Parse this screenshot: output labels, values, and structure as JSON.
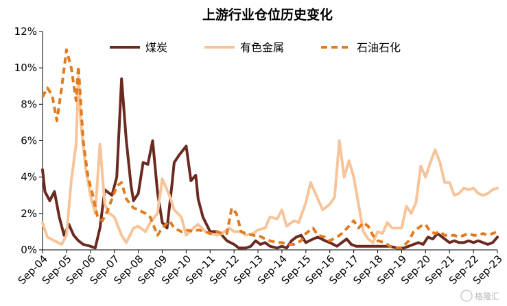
{
  "chart_data": {
    "type": "line",
    "title": "上游行业仓位历史变化",
    "xlabel": "",
    "ylabel": "",
    "ylim": [
      0,
      0.12
    ],
    "y_ticks": [
      "0%",
      "2%",
      "4%",
      "6%",
      "8%",
      "10%",
      "12%"
    ],
    "x_range": [
      2004.5,
      2023.5
    ],
    "x_tick_labels": [
      "Sep-04",
      "Sep-05",
      "Sep-06",
      "Sep-07",
      "Sep-08",
      "Sep-09",
      "Sep-10",
      "Sep-11",
      "Sep-12",
      "Sep-13",
      "Sep-14",
      "Sep-15",
      "Sep-16",
      "Sep-17",
      "Sep-18",
      "Sep-19",
      "Sep-20",
      "Sep-21",
      "Sep-22",
      "Sep-23"
    ],
    "grid": false,
    "legend_position": "top",
    "series": [
      {
        "name": "煤炭",
        "color": "#6b2a20",
        "style": "solid",
        "points": [
          [
            2004.5,
            0.044
          ],
          [
            2004.6,
            0.032
          ],
          [
            2004.8,
            0.027
          ],
          [
            2005.0,
            0.032
          ],
          [
            2005.2,
            0.018
          ],
          [
            2005.4,
            0.008
          ],
          [
            2005.6,
            0.014
          ],
          [
            2005.8,
            0.008
          ],
          [
            2006.0,
            0.005
          ],
          [
            2006.2,
            0.003
          ],
          [
            2006.5,
            0.002
          ],
          [
            2006.7,
            0.001
          ],
          [
            2006.9,
            0.012
          ],
          [
            2007.1,
            0.033
          ],
          [
            2007.4,
            0.03
          ],
          [
            2007.6,
            0.04
          ],
          [
            2007.8,
            0.094
          ],
          [
            2008.0,
            0.06
          ],
          [
            2008.2,
            0.035
          ],
          [
            2008.3,
            0.027
          ],
          [
            2008.5,
            0.031
          ],
          [
            2008.7,
            0.048
          ],
          [
            2008.9,
            0.047
          ],
          [
            2009.1,
            0.06
          ],
          [
            2009.3,
            0.032
          ],
          [
            2009.5,
            0.015
          ],
          [
            2009.7,
            0.012
          ],
          [
            2009.9,
            0.035
          ],
          [
            2010.0,
            0.048
          ],
          [
            2010.2,
            0.052
          ],
          [
            2010.5,
            0.057
          ],
          [
            2010.7,
            0.038
          ],
          [
            2010.9,
            0.041
          ],
          [
            2011.0,
            0.028
          ],
          [
            2011.2,
            0.018
          ],
          [
            2011.5,
            0.01
          ],
          [
            2011.8,
            0.01
          ],
          [
            2012.0,
            0.008
          ],
          [
            2012.2,
            0.005
          ],
          [
            2012.5,
            0.003
          ],
          [
            2012.7,
            0.001
          ],
          [
            2013.0,
            0.001
          ],
          [
            2013.2,
            0.002
          ],
          [
            2013.4,
            0.005
          ],
          [
            2013.6,
            0.003
          ],
          [
            2013.8,
            0.004
          ],
          [
            2014.0,
            0.002
          ],
          [
            2014.3,
            0.001
          ],
          [
            2014.5,
            0.002
          ],
          [
            2014.7,
            0.001
          ],
          [
            2014.9,
            0.005
          ],
          [
            2015.1,
            0.007
          ],
          [
            2015.3,
            0.008
          ],
          [
            2015.5,
            0.004
          ],
          [
            2015.8,
            0.006
          ],
          [
            2016.0,
            0.007
          ],
          [
            2016.3,
            0.005
          ],
          [
            2016.5,
            0.004
          ],
          [
            2016.8,
            0.002
          ],
          [
            2017.0,
            0.004
          ],
          [
            2017.2,
            0.006
          ],
          [
            2017.4,
            0.003
          ],
          [
            2017.6,
            0.002
          ],
          [
            2018.0,
            0.002
          ],
          [
            2018.3,
            0.002
          ],
          [
            2018.6,
            0.002
          ],
          [
            2019.0,
            0.002
          ],
          [
            2019.3,
            0.001
          ],
          [
            2019.6,
            0.001
          ],
          [
            2020.0,
            0.003
          ],
          [
            2020.2,
            0.004
          ],
          [
            2020.4,
            0.003
          ],
          [
            2020.6,
            0.007
          ],
          [
            2020.8,
            0.006
          ],
          [
            2021.0,
            0.009
          ],
          [
            2021.2,
            0.007
          ],
          [
            2021.5,
            0.004
          ],
          [
            2021.7,
            0.005
          ],
          [
            2021.9,
            0.004
          ],
          [
            2022.1,
            0.004
          ],
          [
            2022.3,
            0.005
          ],
          [
            2022.5,
            0.004
          ],
          [
            2022.7,
            0.005
          ],
          [
            2022.9,
            0.004
          ],
          [
            2023.1,
            0.003
          ],
          [
            2023.3,
            0.004
          ],
          [
            2023.5,
            0.007
          ]
        ]
      },
      {
        "name": "有色金属",
        "color": "#f7c49a",
        "style": "solid",
        "points": [
          [
            2004.5,
            0.015
          ],
          [
            2004.7,
            0.007
          ],
          [
            2005.0,
            0.005
          ],
          [
            2005.3,
            0.003
          ],
          [
            2005.5,
            0.008
          ],
          [
            2005.7,
            0.038
          ],
          [
            2005.9,
            0.058
          ],
          [
            2006.0,
            0.095
          ],
          [
            2006.1,
            0.07
          ],
          [
            2006.3,
            0.045
          ],
          [
            2006.5,
            0.03
          ],
          [
            2006.7,
            0.02
          ],
          [
            2006.9,
            0.058
          ],
          [
            2007.1,
            0.025
          ],
          [
            2007.3,
            0.02
          ],
          [
            2007.5,
            0.018
          ],
          [
            2007.8,
            0.008
          ],
          [
            2008.0,
            0.004
          ],
          [
            2008.3,
            0.012
          ],
          [
            2008.5,
            0.013
          ],
          [
            2008.8,
            0.01
          ],
          [
            2009.0,
            0.015
          ],
          [
            2009.3,
            0.02
          ],
          [
            2009.5,
            0.039
          ],
          [
            2009.8,
            0.03
          ],
          [
            2010.0,
            0.022
          ],
          [
            2010.3,
            0.018
          ],
          [
            2010.5,
            0.008
          ],
          [
            2010.8,
            0.012
          ],
          [
            2011.0,
            0.014
          ],
          [
            2011.3,
            0.01
          ],
          [
            2011.5,
            0.009
          ],
          [
            2011.8,
            0.008
          ],
          [
            2012.0,
            0.009
          ],
          [
            2012.3,
            0.012
          ],
          [
            2012.5,
            0.01
          ],
          [
            2012.8,
            0.01
          ],
          [
            2013.0,
            0.008
          ],
          [
            2013.3,
            0.009
          ],
          [
            2013.5,
            0.011
          ],
          [
            2013.8,
            0.012
          ],
          [
            2014.0,
            0.018
          ],
          [
            2014.3,
            0.017
          ],
          [
            2014.5,
            0.022
          ],
          [
            2014.7,
            0.013
          ],
          [
            2015.0,
            0.016
          ],
          [
            2015.2,
            0.015
          ],
          [
            2015.5,
            0.026
          ],
          [
            2015.7,
            0.037
          ],
          [
            2016.0,
            0.028
          ],
          [
            2016.2,
            0.022
          ],
          [
            2016.5,
            0.025
          ],
          [
            2016.7,
            0.029
          ],
          [
            2016.9,
            0.06
          ],
          [
            2017.1,
            0.04
          ],
          [
            2017.3,
            0.049
          ],
          [
            2017.5,
            0.04
          ],
          [
            2017.7,
            0.025
          ],
          [
            2017.9,
            0.01
          ],
          [
            2018.1,
            0.006
          ],
          [
            2018.3,
            0.004
          ],
          [
            2018.5,
            0.01
          ],
          [
            2018.7,
            0.009
          ],
          [
            2018.9,
            0.015
          ],
          [
            2019.1,
            0.012
          ],
          [
            2019.3,
            0.012
          ],
          [
            2019.5,
            0.012
          ],
          [
            2019.7,
            0.024
          ],
          [
            2019.9,
            0.02
          ],
          [
            2020.1,
            0.026
          ],
          [
            2020.3,
            0.046
          ],
          [
            2020.5,
            0.04
          ],
          [
            2020.7,
            0.048
          ],
          [
            2020.9,
            0.055
          ],
          [
            2021.1,
            0.048
          ],
          [
            2021.3,
            0.037
          ],
          [
            2021.5,
            0.037
          ],
          [
            2021.7,
            0.03
          ],
          [
            2021.9,
            0.031
          ],
          [
            2022.1,
            0.034
          ],
          [
            2022.3,
            0.033
          ],
          [
            2022.5,
            0.034
          ],
          [
            2022.7,
            0.031
          ],
          [
            2022.9,
            0.03
          ],
          [
            2023.1,
            0.031
          ],
          [
            2023.3,
            0.033
          ],
          [
            2023.5,
            0.034
          ]
        ]
      },
      {
        "name": "石油石化",
        "color": "#e07b1f",
        "style": "dashed",
        "points": [
          [
            2004.5,
            0.084
          ],
          [
            2004.7,
            0.089
          ],
          [
            2004.9,
            0.085
          ],
          [
            2005.1,
            0.071
          ],
          [
            2005.3,
            0.089
          ],
          [
            2005.5,
            0.11
          ],
          [
            2005.7,
            0.1
          ],
          [
            2005.9,
            0.082
          ],
          [
            2006.0,
            0.101
          ],
          [
            2006.2,
            0.06
          ],
          [
            2006.4,
            0.04
          ],
          [
            2006.6,
            0.03
          ],
          [
            2006.8,
            0.018
          ],
          [
            2007.0,
            0.016
          ],
          [
            2007.2,
            0.021
          ],
          [
            2007.4,
            0.028
          ],
          [
            2007.6,
            0.035
          ],
          [
            2007.8,
            0.037
          ],
          [
            2008.0,
            0.028
          ],
          [
            2008.3,
            0.023
          ],
          [
            2008.5,
            0.022
          ],
          [
            2008.8,
            0.02
          ],
          [
            2009.0,
            0.018
          ],
          [
            2009.3,
            0.008
          ],
          [
            2009.5,
            0.012
          ],
          [
            2009.8,
            0.016
          ],
          [
            2010.0,
            0.012
          ],
          [
            2010.3,
            0.01
          ],
          [
            2010.5,
            0.011
          ],
          [
            2010.8,
            0.01
          ],
          [
            2011.0,
            0.011
          ],
          [
            2011.3,
            0.01
          ],
          [
            2011.5,
            0.009
          ],
          [
            2011.8,
            0.01
          ],
          [
            2012.0,
            0.009
          ],
          [
            2012.2,
            0.009
          ],
          [
            2012.4,
            0.023
          ],
          [
            2012.6,
            0.02
          ],
          [
            2012.8,
            0.01
          ],
          [
            2013.0,
            0.009
          ],
          [
            2013.3,
            0.008
          ],
          [
            2013.5,
            0.008
          ],
          [
            2013.8,
            0.006
          ],
          [
            2014.0,
            0.005
          ],
          [
            2014.3,
            0.004
          ],
          [
            2014.5,
            0.004
          ],
          [
            2014.8,
            0.003
          ],
          [
            2015.0,
            0.003
          ],
          [
            2015.3,
            0.005
          ],
          [
            2015.5,
            0.009
          ],
          [
            2015.8,
            0.012
          ],
          [
            2016.0,
            0.008
          ],
          [
            2016.3,
            0.007
          ],
          [
            2016.5,
            0.005
          ],
          [
            2016.8,
            0.007
          ],
          [
            2017.0,
            0.009
          ],
          [
            2017.3,
            0.013
          ],
          [
            2017.5,
            0.016
          ],
          [
            2017.7,
            0.012
          ],
          [
            2017.9,
            0.015
          ],
          [
            2018.1,
            0.013
          ],
          [
            2018.3,
            0.008
          ],
          [
            2018.5,
            0.005
          ],
          [
            2018.8,
            0.004
          ],
          [
            2019.0,
            0.002
          ],
          [
            2019.3,
            0.001
          ],
          [
            2019.5,
            0.001
          ],
          [
            2019.8,
            0.005
          ],
          [
            2020.0,
            0.01
          ],
          [
            2020.3,
            0.013
          ],
          [
            2020.5,
            0.014
          ],
          [
            2020.7,
            0.01
          ],
          [
            2020.9,
            0.009
          ],
          [
            2021.1,
            0.01
          ],
          [
            2021.3,
            0.008
          ],
          [
            2021.5,
            0.008
          ],
          [
            2021.7,
            0.008
          ],
          [
            2021.9,
            0.007
          ],
          [
            2022.1,
            0.008
          ],
          [
            2022.3,
            0.009
          ],
          [
            2022.5,
            0.008
          ],
          [
            2022.7,
            0.008
          ],
          [
            2022.9,
            0.009
          ],
          [
            2023.1,
            0.008
          ],
          [
            2023.3,
            0.009
          ],
          [
            2023.5,
            0.01
          ]
        ]
      }
    ]
  },
  "watermark": {
    "text": "格隆汇"
  }
}
